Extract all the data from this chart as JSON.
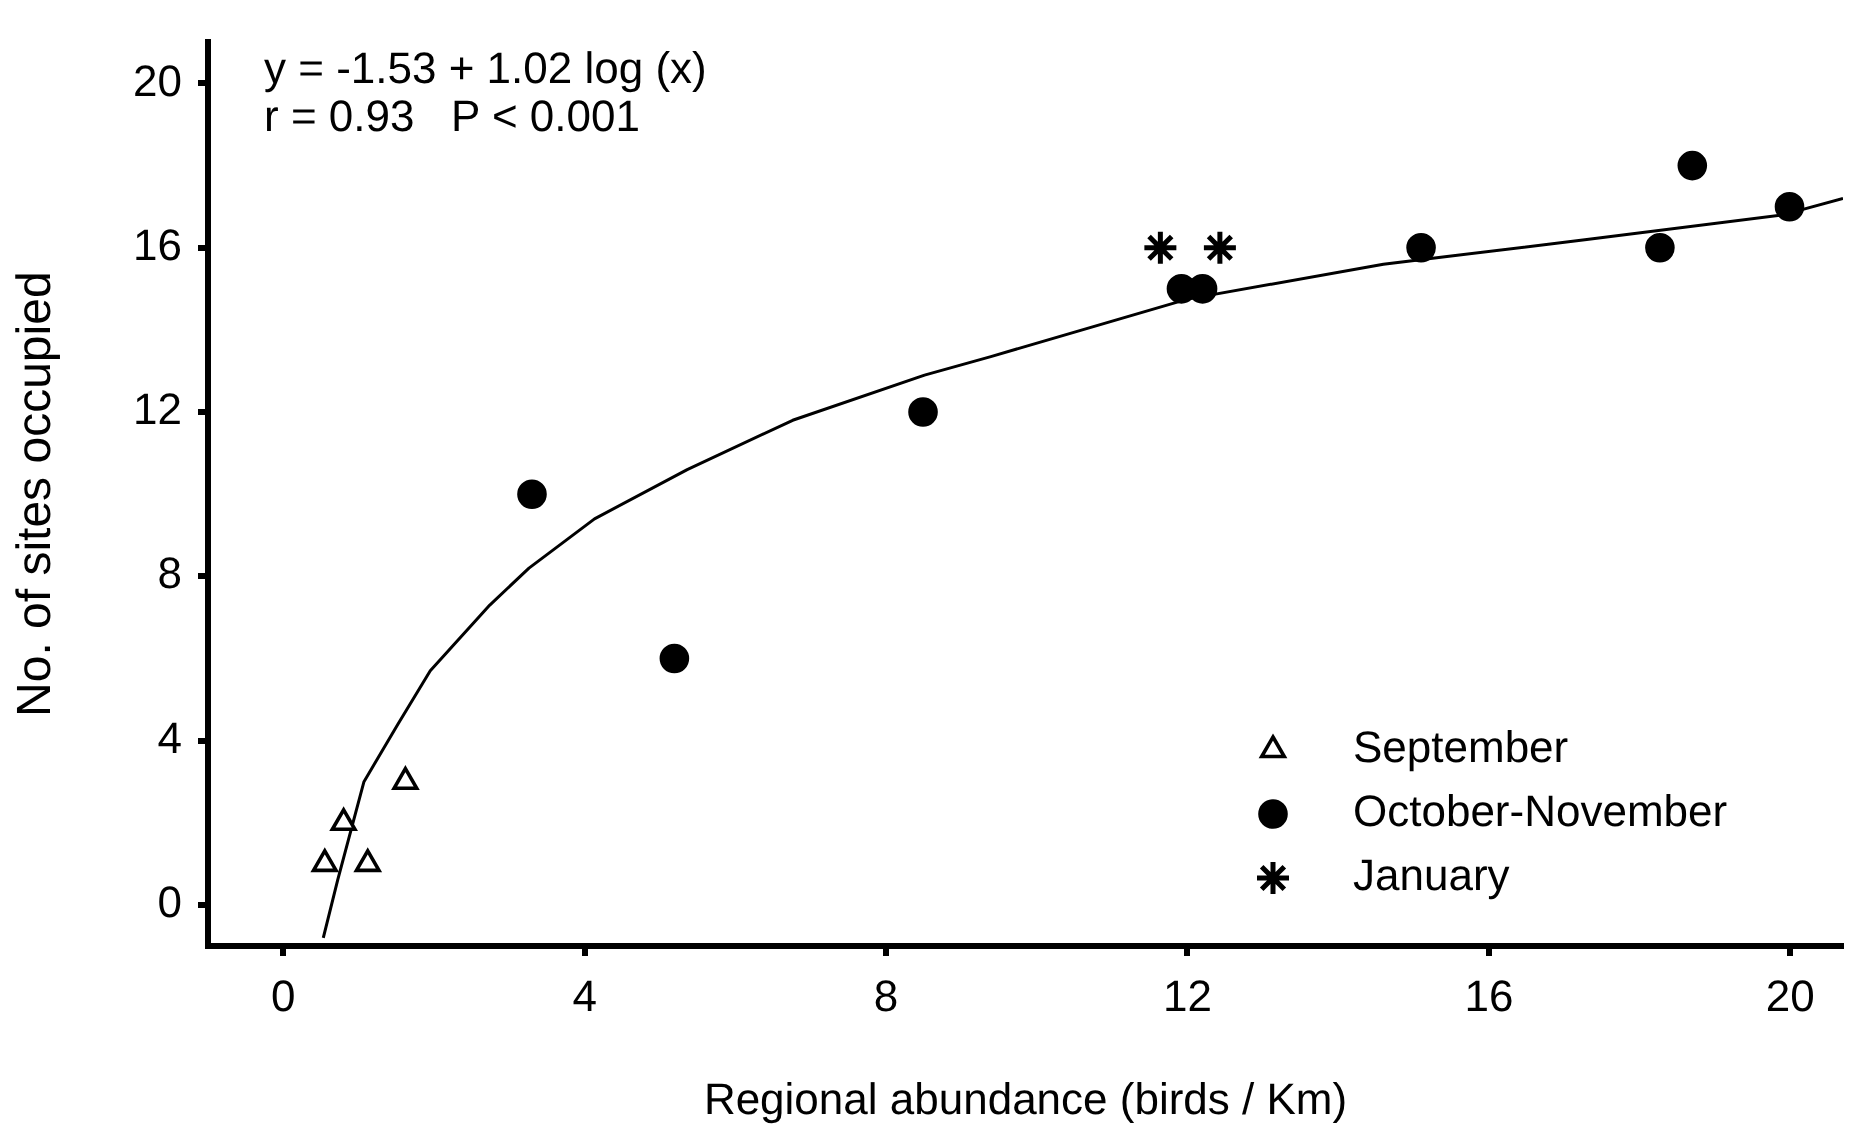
{
  "chart_data": {
    "type": "scatter",
    "xlabel": "Regional abundance (birds / Km)",
    "ylabel": "No. of sites occupied",
    "xlim": [
      -1,
      20.7
    ],
    "ylim": [
      -1,
      21
    ],
    "xticks": [
      0,
      4,
      8,
      12,
      16,
      20
    ],
    "yticks": [
      0,
      4,
      8,
      12,
      16,
      20
    ],
    "grid": false,
    "legend": "bottom right",
    "annotations": [
      "y = -1.53 + 1.02 log (x)",
      "r = 0.93   P < 0.001"
    ],
    "series": [
      {
        "name": "September",
        "color": "#000000",
        "marker": "triangle",
        "x": [
          0.55,
          0.8,
          1.12,
          1.62
        ],
        "values": [
          1,
          2,
          1,
          3
        ]
      },
      {
        "name": "October-November",
        "color": "#000000",
        "marker": "circle",
        "x": [
          3.3,
          5.19,
          8.49,
          11.92,
          12.2,
          15.1,
          18.27,
          18.7,
          19.99
        ],
        "values": [
          10,
          6,
          12,
          15,
          15,
          16,
          16,
          18,
          17
        ]
      },
      {
        "name": "January",
        "color": "#000000",
        "marker": "cross",
        "x": [
          11.64,
          12.43
        ],
        "values": [
          16,
          16
        ]
      },
      {
        "type": "line",
        "color": "#000000",
        "marker": "none",
        "x": [
          0.53,
          0.72,
          1.07,
          1.52,
          1.95,
          2.74,
          3.26,
          4.13,
          5.36,
          6.76,
          8.51,
          9.39,
          12.0,
          14.6,
          17.3,
          19.9,
          20.7
        ],
        "values": [
          -0.8,
          0.6,
          3.0,
          4.4,
          5.7,
          7.3,
          8.2,
          9.4,
          10.6,
          11.8,
          12.9,
          13.35,
          14.75,
          15.6,
          16.2,
          16.8,
          17.2
        ]
      }
    ]
  }
}
